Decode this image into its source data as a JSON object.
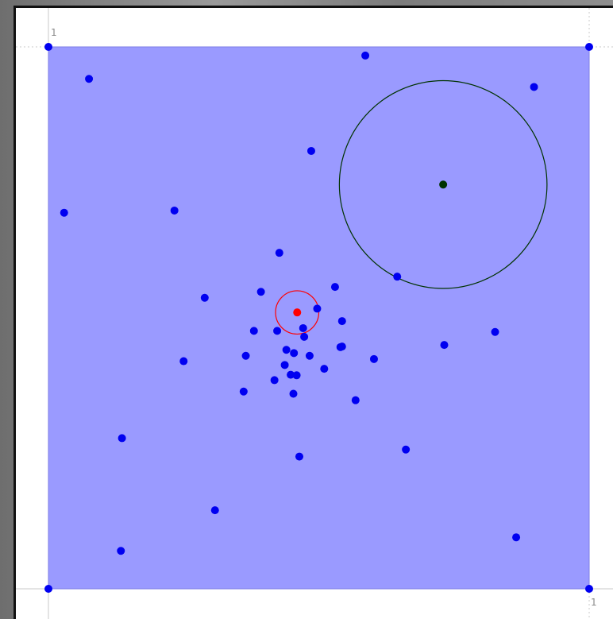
{
  "colors": {
    "region_fill": "#9a9aff",
    "region_stroke": "#7d7de6",
    "point": "#0000f0",
    "highlight": "#ff0000",
    "secondary": "#003300",
    "guide": "#c8c8c8"
  },
  "axes": {
    "y_top_label": "1",
    "x_right_label": "1"
  },
  "chart_data": {
    "type": "scatter",
    "xlim": [
      0,
      1
    ],
    "ylim": [
      0,
      1
    ],
    "points": [
      [
        0.0,
        1.0
      ],
      [
        1.0,
        1.0
      ],
      [
        0.0,
        0.0
      ],
      [
        1.0,
        0.0
      ],
      [
        0.586,
        0.984
      ],
      [
        0.075,
        0.941
      ],
      [
        0.898,
        0.926
      ],
      [
        0.486,
        0.808
      ],
      [
        0.029,
        0.694
      ],
      [
        0.233,
        0.698
      ],
      [
        0.427,
        0.62
      ],
      [
        0.645,
        0.576
      ],
      [
        0.53,
        0.557
      ],
      [
        0.393,
        0.548
      ],
      [
        0.289,
        0.537
      ],
      [
        0.497,
        0.517
      ],
      [
        0.543,
        0.494
      ],
      [
        0.38,
        0.476
      ],
      [
        0.423,
        0.476
      ],
      [
        0.471,
        0.481
      ],
      [
        0.826,
        0.474
      ],
      [
        0.473,
        0.465
      ],
      [
        0.44,
        0.441
      ],
      [
        0.543,
        0.447
      ],
      [
        0.365,
        0.43
      ],
      [
        0.454,
        0.435
      ],
      [
        0.483,
        0.43
      ],
      [
        0.54,
        0.446
      ],
      [
        0.602,
        0.424
      ],
      [
        0.25,
        0.42
      ],
      [
        0.732,
        0.45
      ],
      [
        0.437,
        0.413
      ],
      [
        0.448,
        0.395
      ],
      [
        0.418,
        0.385
      ],
      [
        0.459,
        0.394
      ],
      [
        0.51,
        0.406
      ],
      [
        0.361,
        0.364
      ],
      [
        0.453,
        0.36
      ],
      [
        0.568,
        0.348
      ],
      [
        0.136,
        0.278
      ],
      [
        0.464,
        0.244
      ],
      [
        0.661,
        0.257
      ],
      [
        0.308,
        0.145
      ],
      [
        0.134,
        0.07
      ],
      [
        0.865,
        0.095
      ]
    ],
    "highlight_point": {
      "x": 0.46,
      "y": 0.51,
      "radius": 0.04
    },
    "secondary_point": {
      "x": 0.73,
      "y": 0.746,
      "radius": 0.192
    }
  }
}
